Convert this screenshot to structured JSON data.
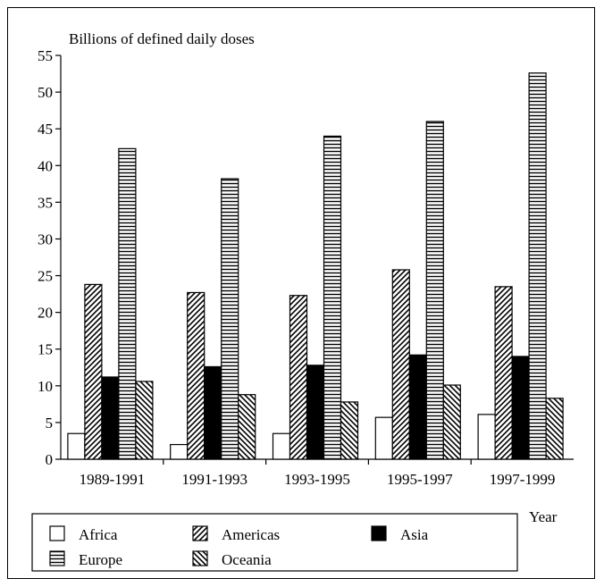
{
  "chart_data": {
    "type": "bar",
    "ylabel": "Billions of defined daily doses",
    "xlabel": "Year",
    "ylim": [
      0,
      55
    ],
    "yticks": [
      0,
      5,
      10,
      15,
      20,
      25,
      30,
      35,
      40,
      45,
      50,
      55
    ],
    "categories": [
      "1989-1991",
      "1991-1993",
      "1993-1995",
      "1995-1997",
      "1997-1999"
    ],
    "series": [
      {
        "name": "Africa",
        "pattern": "none",
        "values": [
          3.5,
          2.0,
          3.5,
          5.7,
          6.1
        ]
      },
      {
        "name": "Americas",
        "pattern": "diag-fwd",
        "values": [
          23.8,
          22.7,
          22.3,
          25.8,
          23.5
        ]
      },
      {
        "name": "Asia",
        "pattern": "solid",
        "values": [
          11.2,
          12.6,
          12.8,
          14.2,
          14.0
        ]
      },
      {
        "name": "Europe",
        "pattern": "horiz",
        "values": [
          42.3,
          38.2,
          44.0,
          46.0,
          52.6
        ]
      },
      {
        "name": "Oceania",
        "pattern": "diag-back",
        "values": [
          10.6,
          8.8,
          7.8,
          10.1,
          8.3
        ]
      }
    ],
    "legend": "bottom",
    "grid": false,
    "colors": {
      "fg": "#000000",
      "bg": "#ffffff"
    }
  }
}
